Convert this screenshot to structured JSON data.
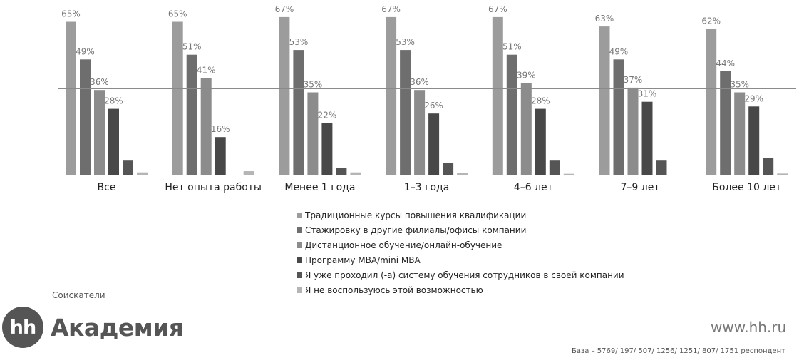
{
  "chart_data": {
    "type": "bar",
    "categories": [
      "Все",
      "Нет опыта работы",
      "Менее 1 года",
      "1–3 года",
      "4–6 лет",
      "7–9 лет",
      "Более 10 лет"
    ],
    "series": [
      {
        "name": "Традиционные курсы повышения квалификации",
        "color": "#9c9c9c",
        "values": [
          65,
          65,
          67,
          67,
          67,
          63,
          62
        ],
        "labels": [
          "65%",
          "65%",
          "67%",
          "67%",
          "67%",
          "63%",
          "62%"
        ]
      },
      {
        "name": "Стажировку в другие филиалы/офисы компании",
        "color": "#6e6e6e",
        "values": [
          49,
          51,
          53,
          53,
          51,
          49,
          44
        ],
        "labels": [
          "49%",
          "51%",
          "53%",
          "53%",
          "51%",
          "49%",
          "44%"
        ]
      },
      {
        "name": "Дистанционное обучение/онлайн-обучение",
        "color": "#8c8c8c",
        "values": [
          36,
          41,
          35,
          36,
          39,
          37,
          35
        ],
        "labels": [
          "36%",
          "41%",
          "35%",
          "36%",
          "39%",
          "37%",
          "35%"
        ]
      },
      {
        "name": "Программу MBA/mini MBA",
        "color": "#484848",
        "values": [
          28,
          16,
          22,
          26,
          28,
          31,
          29
        ],
        "labels": [
          "28%",
          "16%",
          "22%",
          "26%",
          "28%",
          "31%",
          "29%"
        ]
      },
      {
        "name": "Я уже проходил (-а) систему обучения сотрудников в своей компании",
        "color": "#555555",
        "values": [
          6,
          0,
          3,
          5,
          6,
          6,
          7
        ],
        "labels": [
          "",
          "",
          "",
          "",
          "",
          "",
          ""
        ]
      },
      {
        "name": "Я не воспользуюсь этой возможностью",
        "color": "#b5b5b5",
        "values": [
          1,
          1.5,
          1,
          0.6,
          0.4,
          0,
          0.5
        ],
        "labels": [
          "",
          "",
          "",
          "",
          "",
          "",
          ""
        ]
      }
    ],
    "ylim": [
      0,
      70
    ],
    "reference_line": 36.5,
    "grid": false,
    "legend": "bottom-center",
    "title": "",
    "xlabel": "",
    "ylabel": ""
  },
  "caption": "Соискатели",
  "logo": {
    "mark": "hh",
    "text": "Академия"
  },
  "website": "www.hh.ru",
  "base": "База – 5769/ 197/ 507/ 1256/ 1251/ 807/ 1751 респондент"
}
